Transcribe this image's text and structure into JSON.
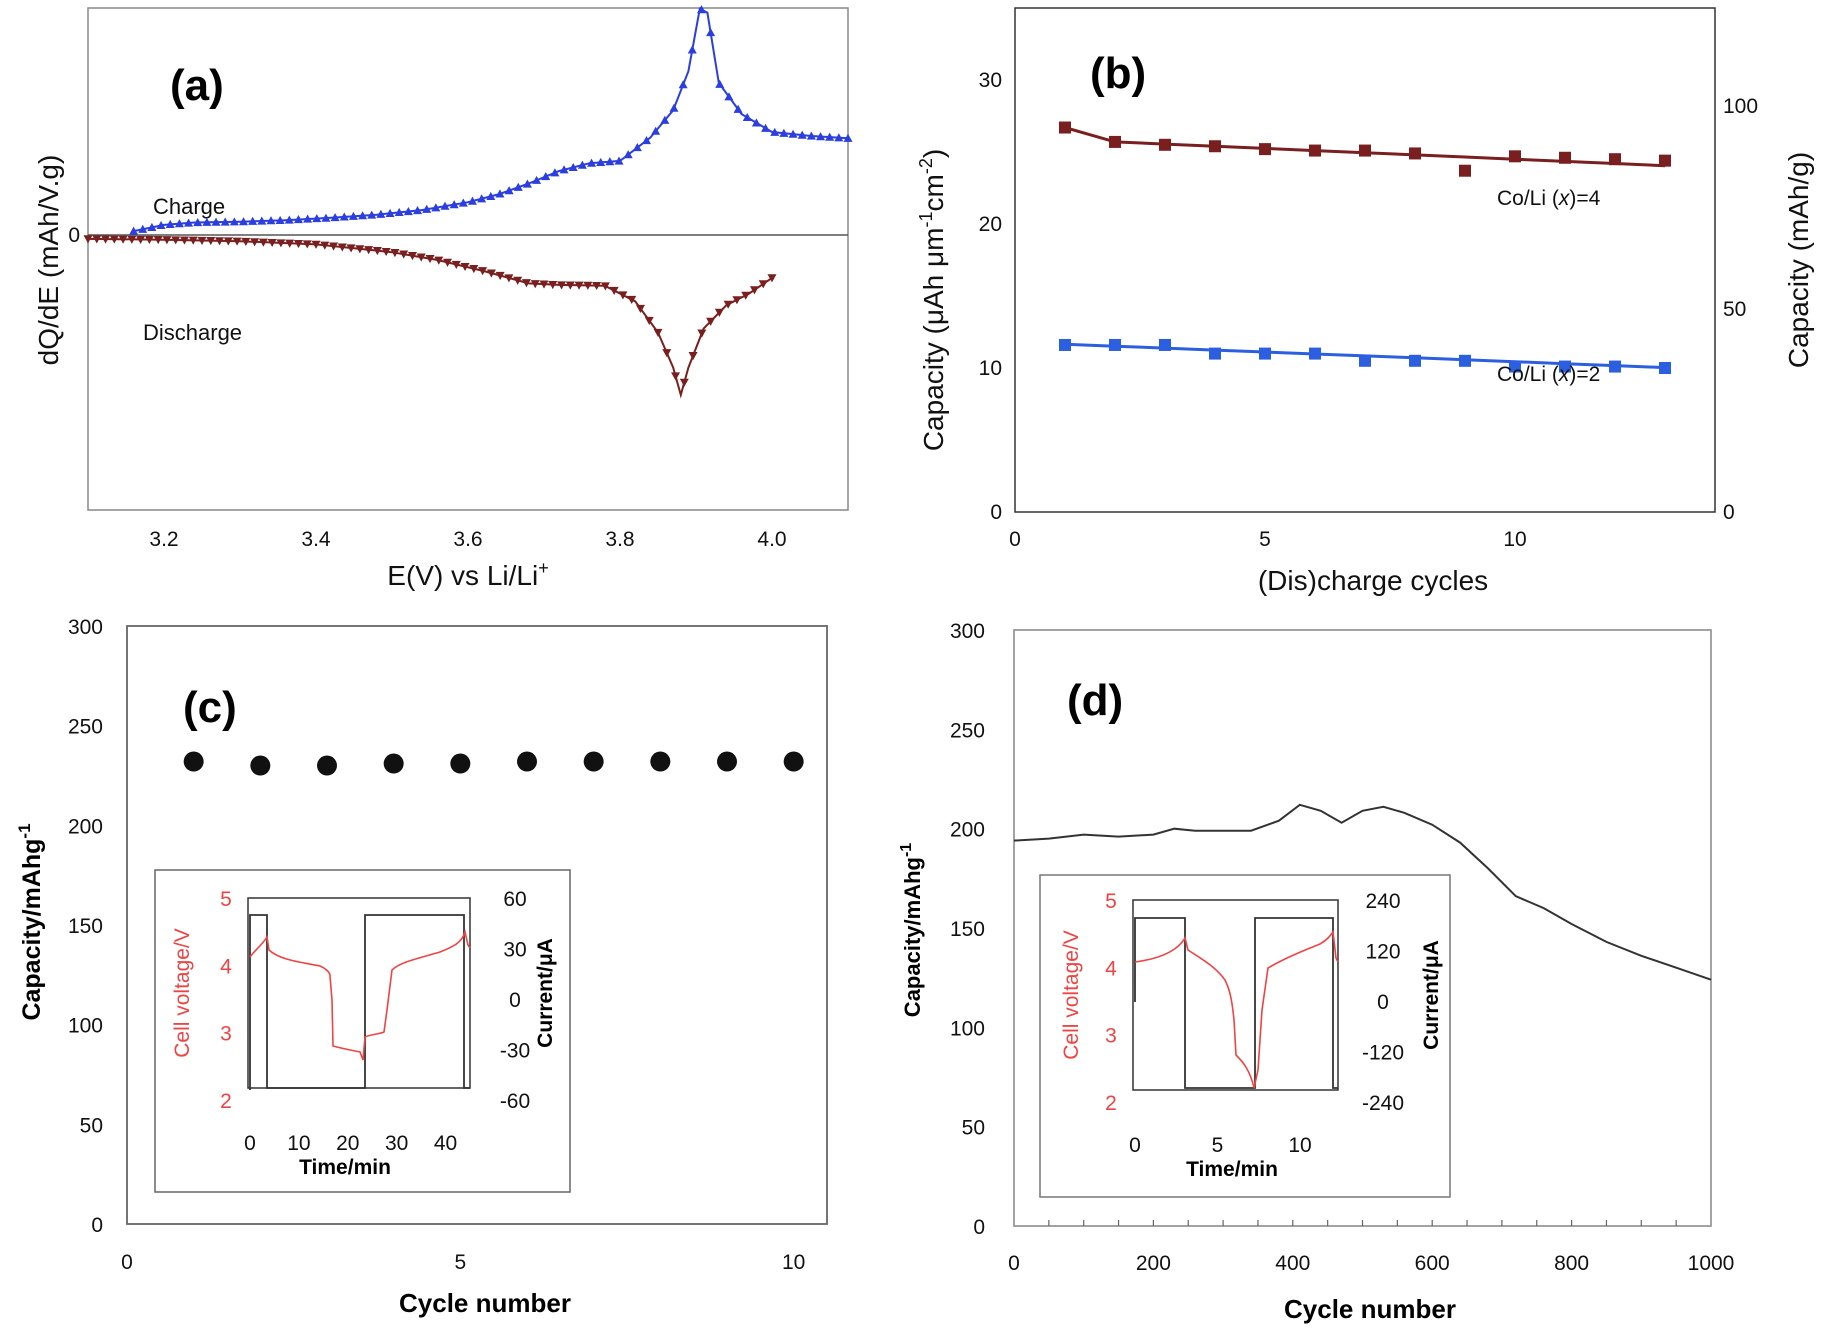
{
  "chart_data": [
    {
      "panel": "(a)",
      "type": "scatter",
      "xlabel": "E(V) vs Li/Li",
      "xlabel_sup": "+",
      "ylabel": "dQ/dE  (mAh/V.g)",
      "xlim": [
        3.1,
        4.1
      ],
      "x_ticks": [
        "3.2",
        "3.4",
        "3.6",
        "3.8",
        "4.0"
      ],
      "y_tick_zero": "0",
      "grid": false,
      "series": [
        {
          "name": "Charge",
          "color": "#2b3ee0",
          "marker": "triangle-up",
          "x": [
            3.16,
            3.2,
            3.24,
            3.3,
            3.36,
            3.42,
            3.48,
            3.54,
            3.6,
            3.64,
            3.68,
            3.72,
            3.76,
            3.8,
            3.84,
            3.87,
            3.89,
            3.905,
            3.915,
            3.93,
            3.96,
            4.0,
            4.05,
            4.1
          ],
          "y": [
            0.05,
            0.13,
            0.16,
            0.17,
            0.19,
            0.22,
            0.26,
            0.32,
            0.42,
            0.52,
            0.66,
            0.82,
            0.92,
            0.95,
            1.25,
            1.6,
            2.1,
            2.9,
            2.85,
            1.95,
            1.55,
            1.32,
            1.27,
            1.24
          ]
        },
        {
          "name": "Discharge",
          "color": "#7a1f1f",
          "marker": "triangle-down",
          "x": [
            3.1,
            3.2,
            3.3,
            3.4,
            3.5,
            3.56,
            3.62,
            3.68,
            3.72,
            3.78,
            3.82,
            3.85,
            3.87,
            3.88,
            3.89,
            3.91,
            3.94,
            3.97,
            4.0
          ],
          "y": [
            -0.05,
            -0.06,
            -0.08,
            -0.12,
            -0.22,
            -0.32,
            -0.46,
            -0.62,
            -0.64,
            -0.65,
            -0.85,
            -1.25,
            -1.7,
            -2.05,
            -1.7,
            -1.2,
            -0.9,
            -0.75,
            -0.55
          ]
        }
      ]
    },
    {
      "panel": "(b)",
      "type": "line",
      "xlabel": "(Dis)charge cycles",
      "ylabel": "Capacity (μAh μm",
      "ylabel_mid": "cm",
      "ylabel_sup1": "-1",
      "ylabel_sup2": "-2",
      "ylabel_unit_end": ")",
      "ylabel_right": "Capacity (mAh/g)",
      "xlim": [
        0,
        14
      ],
      "ylim": [
        0,
        35
      ],
      "x_ticks": [
        "0",
        "5",
        "10"
      ],
      "y_ticks": [
        "0",
        "10",
        "20",
        "30"
      ],
      "y_right_ticks": [
        "0",
        "50",
        "100"
      ],
      "grid": false,
      "series": [
        {
          "name": "Co/Li (x)=4",
          "color": "#7a1f1f",
          "x": [
            1,
            2,
            3,
            4,
            5,
            6,
            7,
            8,
            9,
            10,
            11,
            12,
            13
          ],
          "y": [
            26.7,
            25.7,
            25.5,
            25.4,
            25.2,
            25.1,
            25.1,
            24.9,
            23.7,
            24.7,
            24.6,
            24.5,
            24.4
          ]
        },
        {
          "name": "Co/Li (x)=2",
          "color": "#2b5fe0",
          "x": [
            1,
            2,
            3,
            4,
            5,
            6,
            7,
            8,
            9,
            10,
            11,
            12,
            13
          ],
          "y": [
            11.6,
            11.6,
            11.6,
            11.0,
            11.0,
            11.0,
            10.5,
            10.5,
            10.5,
            10.1,
            10.1,
            10.1,
            10.0
          ]
        }
      ],
      "legend_prefix": "Co/Li (",
      "legend_var": "x",
      "legend_4_suffix": ")=4",
      "legend_2_suffix": ")=2"
    },
    {
      "panel": "(c)",
      "type": "scatter",
      "xlabel": "Cycle number",
      "ylabel": "Capacity/mAhg",
      "ylabel_sup": "-1",
      "xlim": [
        0,
        10.5
      ],
      "ylim": [
        0,
        300
      ],
      "x_ticks": [
        "0",
        "5",
        "10"
      ],
      "y_ticks": [
        "0",
        "50",
        "100",
        "150",
        "200",
        "250",
        "300"
      ],
      "grid": false,
      "x": [
        1,
        2,
        3,
        4,
        5,
        6,
        7,
        8,
        9,
        10
      ],
      "y": [
        232,
        230,
        230,
        231,
        231,
        232,
        232,
        232,
        232,
        232
      ],
      "inset": {
        "xlabel": "Time/min",
        "ylabel_left": "Cell voltage/V",
        "ylabel_right": "Current/μA",
        "x_ticks": [
          "0",
          "10",
          "20",
          "30",
          "40"
        ],
        "y_left_ticks": [
          "2",
          "3",
          "4",
          "5"
        ],
        "y_right_ticks": [
          "-60",
          "-30",
          "0",
          "30",
          "60"
        ],
        "voltage_color": "#ee4444"
      }
    },
    {
      "panel": "(d)",
      "type": "line",
      "xlabel": "Cycle number",
      "ylabel": "Capacity/mAhg",
      "ylabel_sup": "-1",
      "xlim": [
        0,
        1000
      ],
      "ylim": [
        0,
        300
      ],
      "x_ticks": [
        "0",
        "200",
        "400",
        "600",
        "800",
        "1000"
      ],
      "y_ticks": [
        "0",
        "50",
        "100",
        "150",
        "200",
        "250",
        "300"
      ],
      "grid": false,
      "x": [
        0,
        50,
        100,
        150,
        200,
        230,
        260,
        300,
        340,
        380,
        410,
        440,
        470,
        500,
        530,
        560,
        600,
        640,
        680,
        720,
        760,
        800,
        850,
        900,
        950,
        1000
      ],
      "y": [
        194,
        195,
        197,
        196,
        197,
        200,
        199,
        199,
        199,
        204,
        212,
        209,
        203,
        209,
        211,
        208,
        202,
        193,
        180,
        166,
        160,
        152,
        143,
        136,
        130,
        124
      ],
      "inset": {
        "xlabel": "Time/min",
        "ylabel_left": "Cell voltage/V",
        "ylabel_right": "Current/μA",
        "x_ticks": [
          "0",
          "5",
          "10"
        ],
        "y_left_ticks": [
          "2",
          "3",
          "4",
          "5"
        ],
        "y_right_ticks": [
          "-240",
          "-120",
          "0",
          "120",
          "240"
        ],
        "voltage_color": "#ee4444"
      }
    }
  ]
}
